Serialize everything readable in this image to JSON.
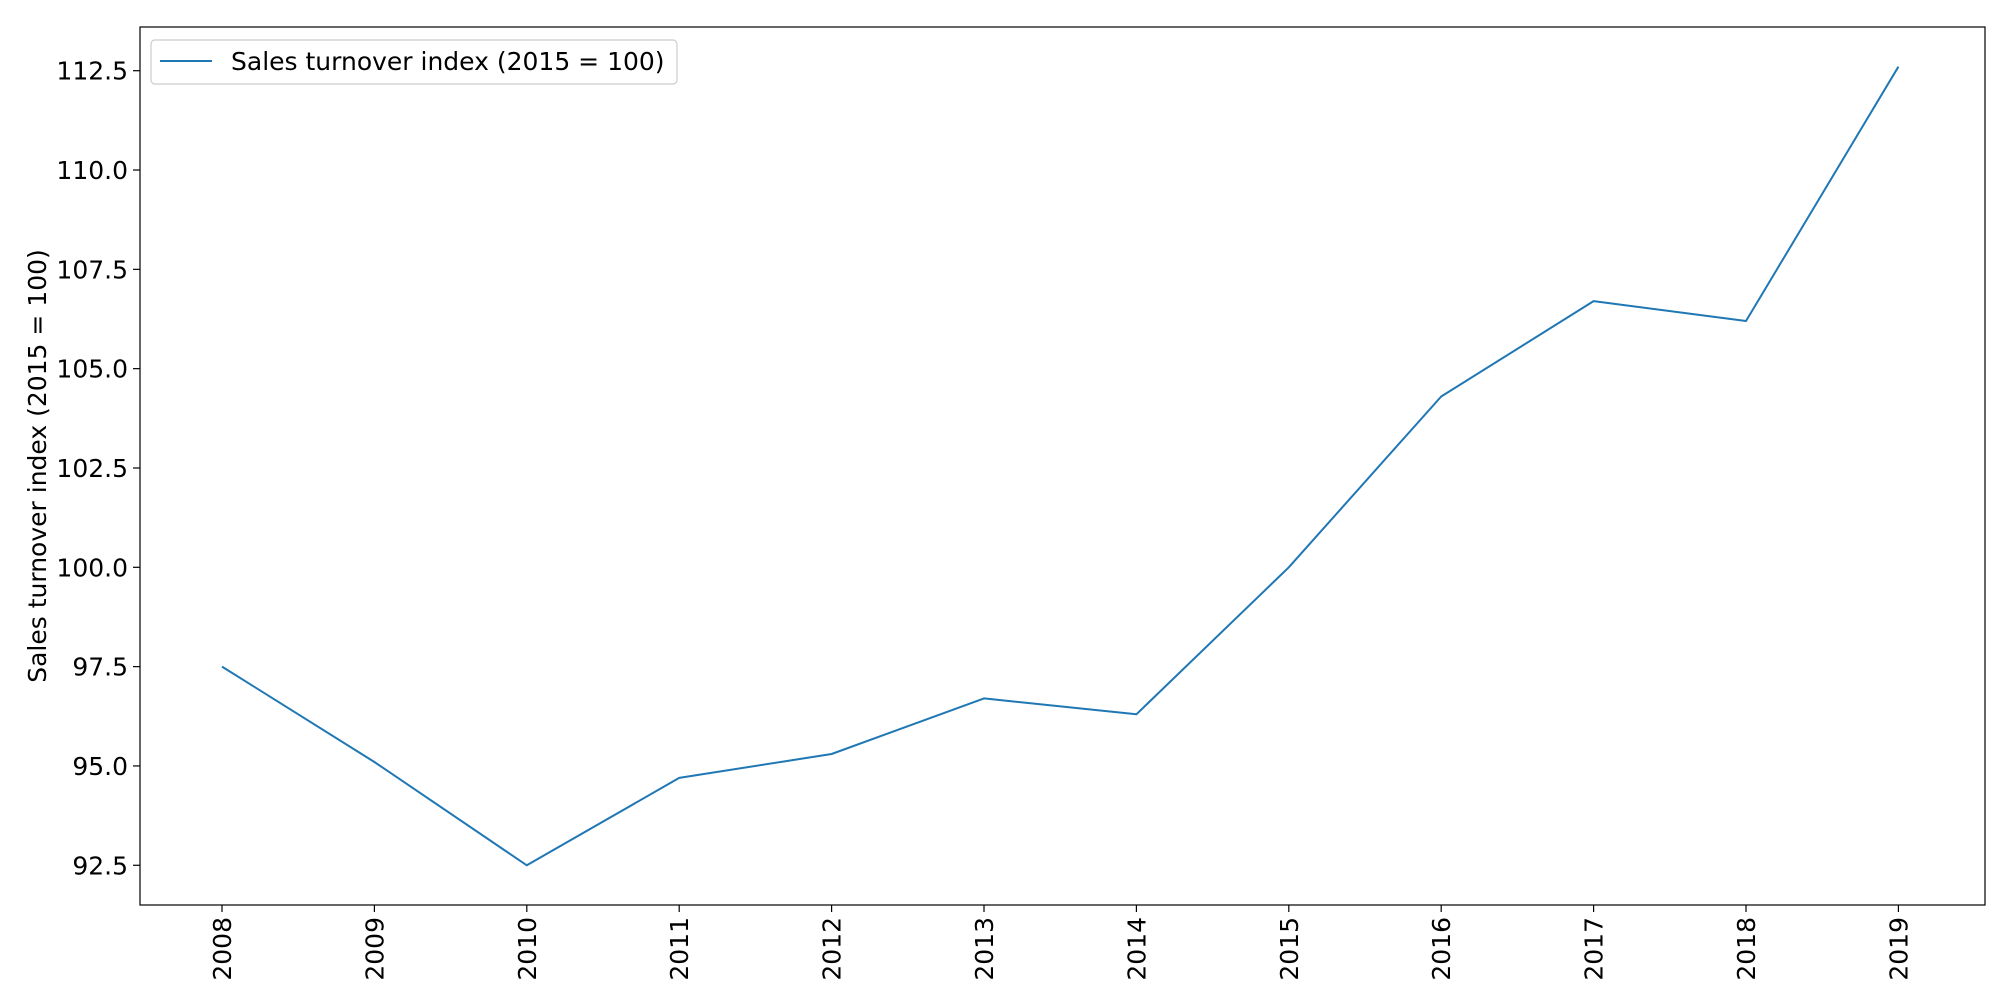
{
  "chart_data": {
    "type": "line",
    "title": "",
    "xlabel": "",
    "ylabel": "Sales turnover index (2015 = 100)",
    "x": [
      "2008",
      "2009",
      "2010",
      "2011",
      "2012",
      "2013",
      "2014",
      "2015",
      "2016",
      "2017",
      "2018",
      "2019"
    ],
    "series": [
      {
        "name": "Sales turnover index (2015 = 100)",
        "values": [
          97.5,
          95.1,
          92.5,
          94.7,
          95.3,
          96.7,
          96.3,
          100.0,
          104.3,
          106.7,
          106.2,
          112.6
        ],
        "color": "#1f77b4"
      }
    ],
    "ylim": [
      91.5,
      113.6
    ],
    "yticks": [
      "92.5",
      "95.0",
      "97.5",
      "100.0",
      "102.5",
      "105.0",
      "107.5",
      "110.0",
      "112.5"
    ],
    "x_tick_rotation": "vertical",
    "legend": "top-left",
    "grid": false
  }
}
